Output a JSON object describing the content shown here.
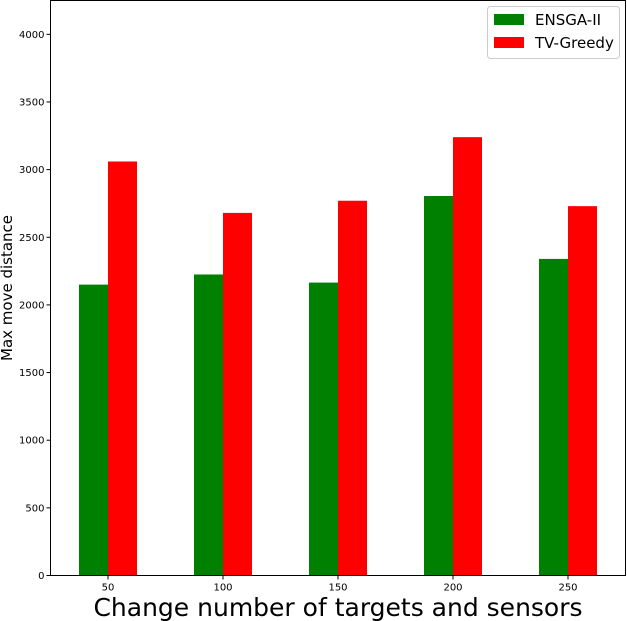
{
  "chart_data": {
    "type": "bar",
    "title": "",
    "xlabel": "Change number of targets and sensors",
    "ylabel": "Max move distance",
    "categories": [
      "50",
      "100",
      "150",
      "200",
      "250"
    ],
    "series": [
      {
        "name": "ENSGA-II",
        "color": "#008000",
        "values": [
          2150,
          2225,
          2165,
          2805,
          2340
        ]
      },
      {
        "name": "TV-Greedy",
        "color": "#ff0000",
        "values": [
          3060,
          2680,
          2770,
          3240,
          2730
        ]
      }
    ],
    "ylim": [
      0,
      4250
    ],
    "yticks": [
      0,
      500,
      1000,
      1500,
      2000,
      2500,
      3000,
      3500,
      4000
    ],
    "ytick_labels": [
      "0",
      "500",
      "1000",
      "1500",
      "2000",
      "2500",
      "3000",
      "3500",
      "4000"
    ],
    "grid": false,
    "legend_position": "top-right"
  }
}
